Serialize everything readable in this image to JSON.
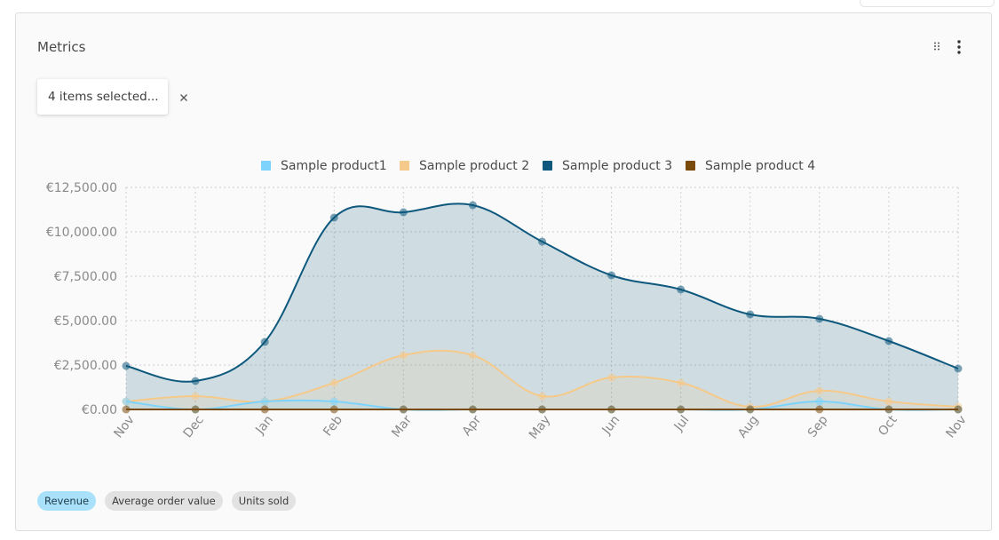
{
  "card": {
    "title": "Metrics",
    "selector_text": "4 items selected...",
    "icons": [
      "drag-handle-icon",
      "more-vertical-icon",
      "close-icon"
    ]
  },
  "chips": [
    {
      "label": "Revenue",
      "active": true
    },
    {
      "label": "Average order value",
      "active": false
    },
    {
      "label": "Units sold",
      "active": false
    }
  ],
  "chart_data": {
    "type": "area",
    "categories": [
      "Nov",
      "Dec",
      "Jan",
      "Feb",
      "Mar",
      "Apr",
      "May",
      "Jun",
      "Jul",
      "Aug",
      "Sep",
      "Oct",
      "Nov"
    ],
    "yticks": [
      "€0.00",
      "€2,500.00",
      "€5,000.00",
      "€7,500.00",
      "€10,000.00",
      "€12,500.00"
    ],
    "ylim": [
      0,
      12500
    ],
    "grid": true,
    "legend_position": "top",
    "series": [
      {
        "name": "Sample product1",
        "color": "#7dd3fc",
        "values": [
          450,
          0,
          450,
          450,
          0,
          0,
          0,
          0,
          0,
          0,
          450,
          0,
          0
        ]
      },
      {
        "name": "Sample product 2",
        "color": "#f5c98a",
        "values": [
          450,
          750,
          450,
          1500,
          3050,
          3050,
          750,
          1800,
          1500,
          150,
          1050,
          450,
          150
        ]
      },
      {
        "name": "Sample product 3",
        "color": "#0d587c",
        "values": [
          2450,
          1600,
          3800,
          10800,
          11100,
          11500,
          9450,
          7550,
          6750,
          5350,
          5100,
          3850,
          2300
        ]
      },
      {
        "name": "Sample product 4",
        "color": "#7a4a0d",
        "values": [
          0,
          0,
          0,
          0,
          0,
          0,
          0,
          0,
          0,
          0,
          0,
          0,
          0
        ]
      }
    ]
  }
}
